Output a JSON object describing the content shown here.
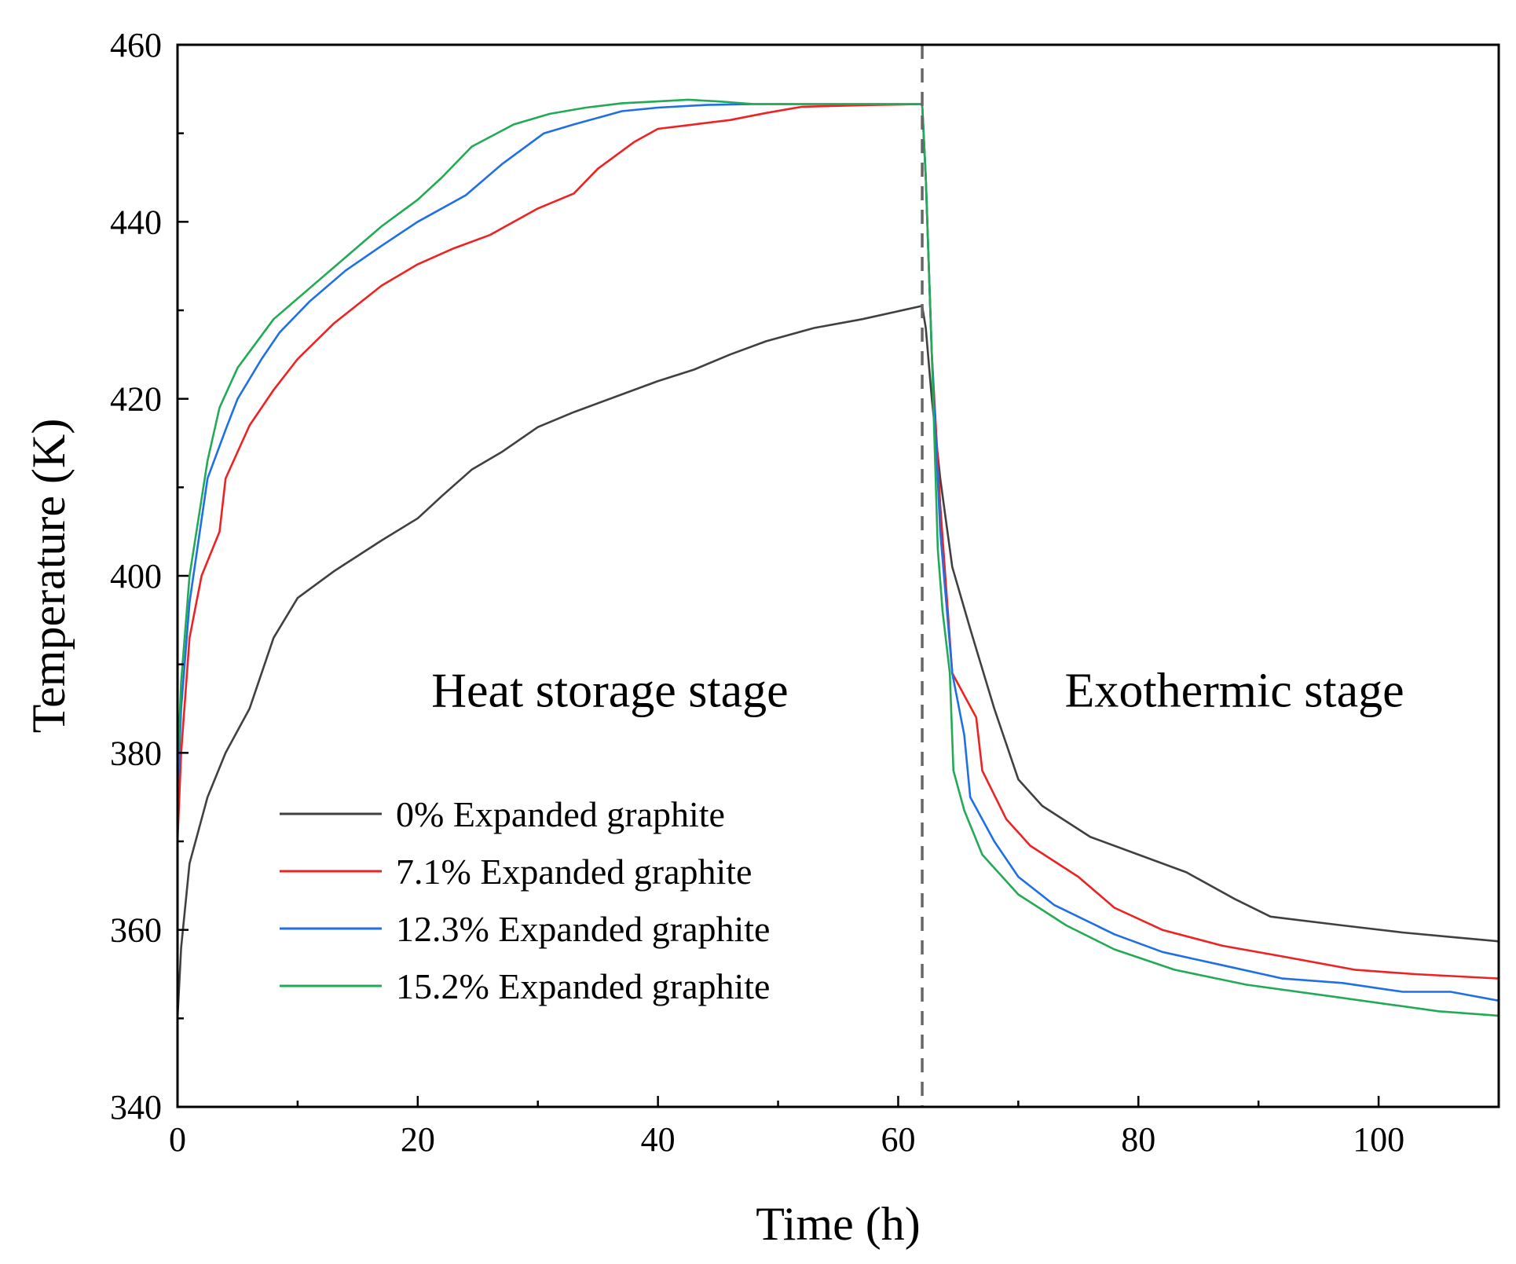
{
  "chart_data": {
    "type": "line",
    "xlabel": "Time (h)",
    "ylabel": "Temperature (K)",
    "xlim": [
      0,
      110
    ],
    "ylim": [
      340,
      460
    ],
    "xticks": [
      0,
      20,
      40,
      60,
      80,
      100
    ],
    "yticks": [
      340,
      360,
      380,
      400,
      420,
      440,
      460
    ],
    "xtick_labels": [
      "0",
      "20",
      "40",
      "60",
      "80",
      "100"
    ],
    "ytick_labels": [
      "340",
      "360",
      "380",
      "400",
      "420",
      "440",
      "460"
    ],
    "grid": false,
    "legend_position": "lower-left",
    "divider_x": 62,
    "annotations": [
      {
        "text": "Heat storage stage",
        "x": 36,
        "y": 387
      },
      {
        "text": "Exothermic stage",
        "x": 88,
        "y": 387
      }
    ],
    "series": [
      {
        "name": "0% Expanded graphite",
        "color": "#404040",
        "x": [
          0,
          0.3,
          1,
          2.5,
          4,
          6,
          8,
          10,
          13,
          17,
          20,
          22,
          24.5,
          27,
          30,
          33,
          37,
          40,
          43,
          46,
          49,
          53,
          57,
          62,
          62.3,
          62.8,
          63.5,
          64.5,
          66,
          68,
          70,
          72,
          76,
          80,
          84,
          88,
          91,
          97,
          102,
          106,
          110
        ],
        "y": [
          350,
          358,
          367.5,
          375,
          380,
          385,
          393,
          397.5,
          400.5,
          404,
          406.5,
          409,
          412,
          414,
          416.8,
          418.5,
          420.5,
          422,
          423.3,
          425,
          426.5,
          428,
          429,
          430.5,
          428,
          420,
          411,
          401,
          394,
          385,
          377,
          374,
          370.5,
          368.5,
          366.5,
          363.5,
          361.5,
          360.5,
          359.7,
          359.2,
          358.7
        ]
      },
      {
        "name": "7.1% Expanded graphite",
        "color": "#ee2222",
        "x": [
          0,
          0.3,
          1,
          2,
          3.5,
          4,
          6,
          8,
          10,
          13,
          17,
          20,
          23,
          26,
          30,
          33,
          35,
          38,
          40,
          43,
          46,
          49,
          52,
          55,
          58,
          62,
          62.3,
          62.8,
          63.5,
          64.5,
          66.5,
          67,
          69,
          71,
          75,
          78,
          82,
          87,
          92,
          98,
          103,
          110
        ],
        "y": [
          370,
          380,
          393,
          400,
          405,
          411,
          417,
          421,
          424.5,
          428.5,
          432.8,
          435.2,
          437,
          438.5,
          441.5,
          443.2,
          446,
          449,
          450.5,
          451,
          451.5,
          452.3,
          453,
          453.1,
          453.2,
          453.3,
          445,
          425,
          408,
          389,
          384,
          378,
          372.5,
          369.5,
          366,
          362.5,
          360,
          358.2,
          357,
          355.5,
          355,
          354.5
        ]
      },
      {
        "name": "12.3% Expanded graphite",
        "color": "#1f6fe6",
        "x": [
          0,
          0.3,
          1,
          2.5,
          4,
          5,
          7,
          8.5,
          11,
          14,
          17,
          20,
          24,
          27,
          30.5,
          33,
          37,
          40,
          44,
          48,
          52,
          56,
          62,
          62.3,
          62.8,
          63.5,
          64.5,
          65.5,
          66,
          68,
          70,
          73,
          78,
          82,
          87,
          92,
          97,
          102,
          106,
          110
        ],
        "y": [
          375,
          385,
          397,
          411,
          416.5,
          420,
          424.5,
          427.5,
          431,
          434.5,
          437.3,
          440,
          443,
          446.5,
          450,
          451,
          452.5,
          452.9,
          453.2,
          453.3,
          453.3,
          453.3,
          453.3,
          445,
          425,
          405,
          389,
          382,
          375,
          370,
          366,
          362.8,
          359.5,
          357.5,
          356,
          354.5,
          354,
          353,
          353,
          352
        ]
      },
      {
        "name": "15.2% Expanded graphite",
        "color": "#22aa55",
        "x": [
          0,
          0.3,
          1,
          2.5,
          3.5,
          4.5,
          5,
          8,
          11,
          14,
          17,
          20,
          22,
          24.5,
          28,
          31,
          34,
          37,
          40,
          42.5,
          45,
          48,
          52,
          56,
          62,
          62.3,
          62.8,
          63.3,
          63.7,
          64.3,
          64.6,
          65.5,
          67,
          70,
          74,
          78,
          83,
          89,
          96,
          105,
          110
        ],
        "y": [
          378,
          388,
          400,
          413,
          419,
          422,
          423.5,
          429,
          432.5,
          436,
          439.5,
          442.5,
          445,
          448.5,
          451,
          452.2,
          452.9,
          453.4,
          453.6,
          453.8,
          453.6,
          453.3,
          453.3,
          453.3,
          453.3,
          445,
          425,
          403,
          396,
          389,
          378,
          373.5,
          368.5,
          364,
          360.5,
          357.8,
          355.5,
          353.8,
          352.5,
          350.8,
          350.3
        ]
      }
    ]
  }
}
